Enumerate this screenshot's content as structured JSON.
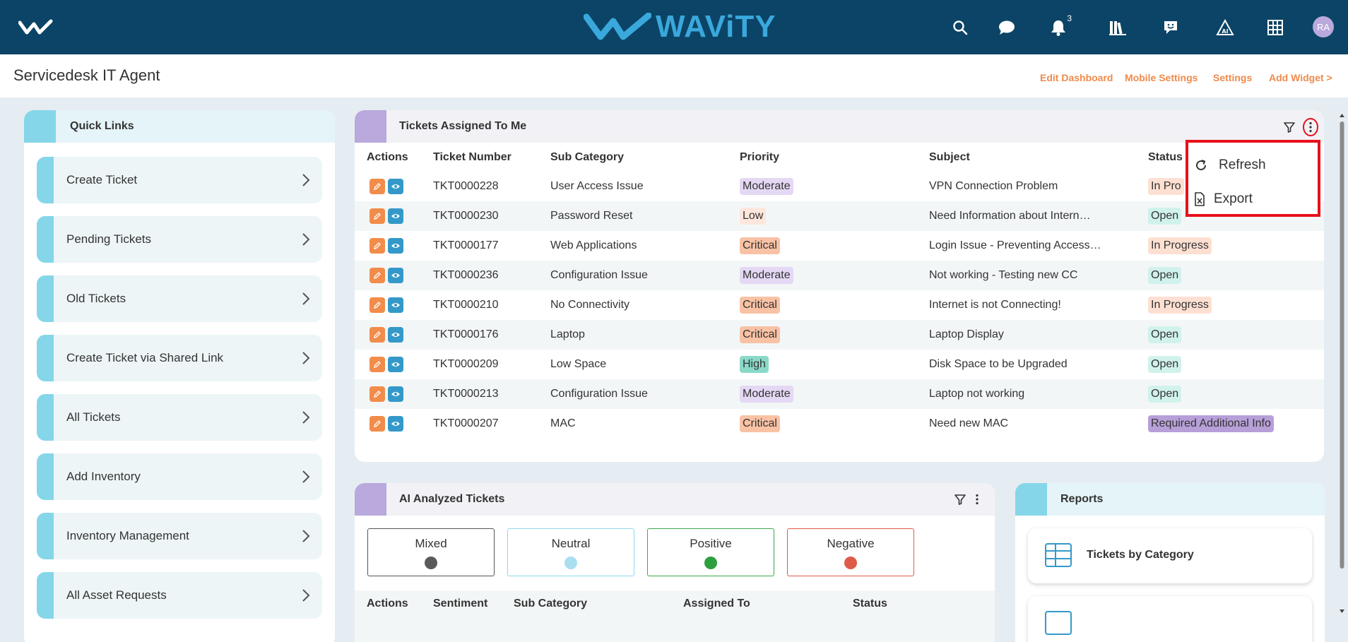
{
  "brand": {
    "name": "WAViTY"
  },
  "header": {
    "notification_count": "3",
    "avatar_initials": "RA",
    "icons": [
      "search-icon",
      "chat-icon",
      "bell-icon",
      "library-icon",
      "feedback-icon",
      "ai-icon",
      "grid-icon"
    ]
  },
  "page": {
    "title": "Servicedesk IT Agent",
    "links": [
      "Edit Dashboard",
      "Mobile Settings",
      "Settings",
      "Add Widget >"
    ]
  },
  "quick_links": {
    "title": "Quick Links",
    "items": [
      "Create Ticket",
      "Pending Tickets",
      "Old Tickets",
      "Create Ticket via Shared Link",
      "All Tickets",
      "Add Inventory",
      "Inventory Management",
      "All Asset Requests"
    ]
  },
  "tickets": {
    "title": "Tickets Assigned To Me",
    "columns": [
      "Actions",
      "Ticket Number",
      "Sub Category",
      "Priority",
      "Subject",
      "Status"
    ],
    "rows": [
      {
        "number": "TKT0000228",
        "sub": "User Access Issue",
        "priority": "Moderate",
        "subject": "VPN Connection Problem",
        "status": "In Pro"
      },
      {
        "number": "TKT0000230",
        "sub": "Password Reset",
        "priority": "Low",
        "subject": "Need Information about Intern…",
        "status": "Open"
      },
      {
        "number": "TKT0000177",
        "sub": "Web Applications",
        "priority": "Critical",
        "subject": "Login Issue - Preventing Access…",
        "status": "In Progress"
      },
      {
        "number": "TKT0000236",
        "sub": "Configuration Issue",
        "priority": "Moderate",
        "subject": "Not working - Testing new CC",
        "status": "Open"
      },
      {
        "number": "TKT0000210",
        "sub": "No Connectivity",
        "priority": "Critical",
        "subject": "Internet is not Connecting!",
        "status": "In Progress"
      },
      {
        "number": "TKT0000176",
        "sub": "Laptop",
        "priority": "Critical",
        "subject": "Laptop Display",
        "status": "Open"
      },
      {
        "number": "TKT0000209",
        "sub": "Low Space",
        "priority": "High",
        "subject": "Disk Space to be Upgraded",
        "status": "Open"
      },
      {
        "number": "TKT0000213",
        "sub": "Configuration Issue",
        "priority": "Moderate",
        "subject": "Laptop not working",
        "status": "Open"
      },
      {
        "number": "TKT0000207",
        "sub": "MAC",
        "priority": "Critical",
        "subject": "Need new MAC",
        "status": "Required Additional Info"
      }
    ],
    "menu": [
      "Refresh",
      "Export"
    ]
  },
  "ai_tickets": {
    "title": "AI Analyzed Tickets",
    "sentiments": [
      "Mixed",
      "Neutral",
      "Positive",
      "Negative"
    ],
    "columns": [
      "Actions",
      "Sentiment",
      "Sub Category",
      "Assigned To",
      "Status"
    ]
  },
  "reports": {
    "title": "Reports",
    "items": [
      "Tickets by Category"
    ]
  },
  "colors": {
    "topbar": "#0b4466",
    "accent_orange": "#f08a4b",
    "moderate": "#e4d8f4",
    "low": "#fde7dc",
    "critical": "#f9c2a5",
    "high": "#8ad9c8",
    "open": "#d1f2ec",
    "in_progress": "#fde0d2",
    "required_info": "#b79fd8"
  }
}
